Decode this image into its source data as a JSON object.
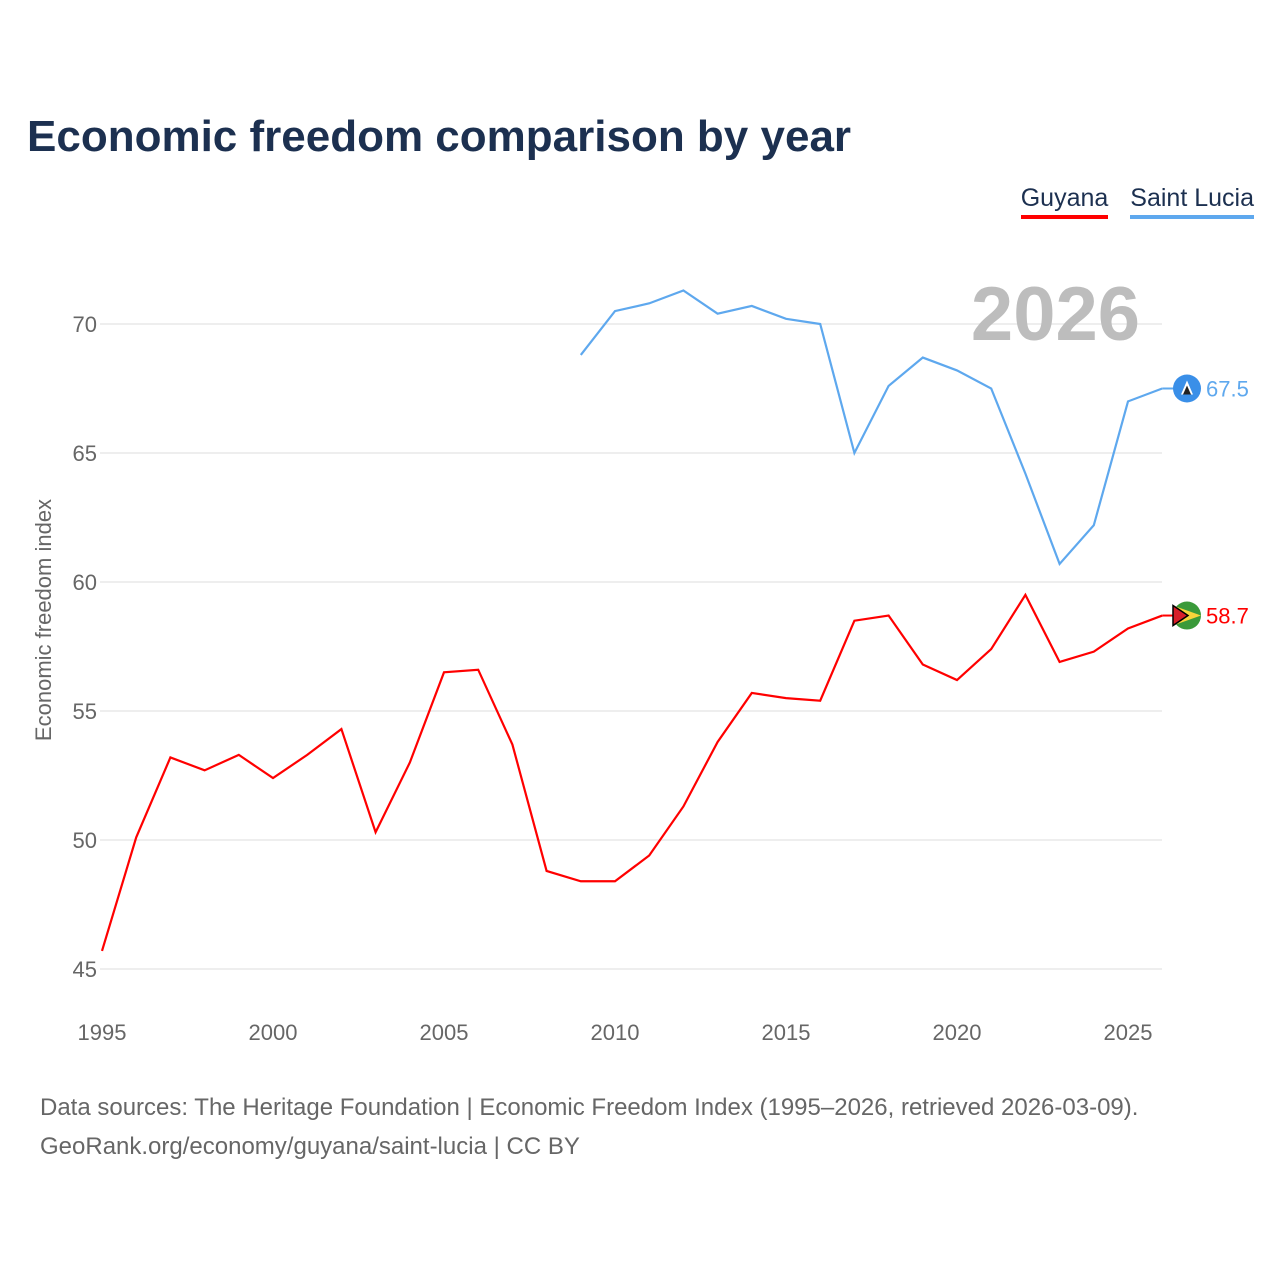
{
  "chart_data": {
    "type": "line",
    "title": "Economic freedom comparison by year",
    "xlabel": "",
    "ylabel": "Economic freedom index",
    "xlim": [
      1995,
      2026
    ],
    "ylim": [
      45,
      72
    ],
    "xticks": [
      1995,
      2000,
      2005,
      2010,
      2015,
      2020,
      2025
    ],
    "yticks": [
      45,
      50,
      55,
      60,
      65,
      70
    ],
    "grid": true,
    "legend_position": "top-right",
    "year_label": "2026",
    "series": [
      {
        "name": "Guyana",
        "color": "#ff0000",
        "end_label": "58.7",
        "x": [
          1995,
          1996,
          1997,
          1998,
          1999,
          2000,
          2001,
          2002,
          2003,
          2004,
          2005,
          2006,
          2007,
          2008,
          2009,
          2010,
          2011,
          2012,
          2013,
          2014,
          2015,
          2016,
          2017,
          2018,
          2019,
          2020,
          2021,
          2022,
          2023,
          2024,
          2025,
          2026
        ],
        "values": [
          45.7,
          50.1,
          53.2,
          52.7,
          53.3,
          52.4,
          53.3,
          54.3,
          50.3,
          53.0,
          56.5,
          56.6,
          53.7,
          48.8,
          48.4,
          48.4,
          49.4,
          51.3,
          53.8,
          55.7,
          55.5,
          55.4,
          58.5,
          58.7,
          56.8,
          56.2,
          57.4,
          59.5,
          56.9,
          57.3,
          58.2,
          58.7
        ]
      },
      {
        "name": "Saint Lucia",
        "color": "#5ea8ee",
        "end_label": "67.5",
        "x": [
          2009,
          2010,
          2011,
          2012,
          2013,
          2014,
          2015,
          2016,
          2017,
          2018,
          2019,
          2020,
          2021,
          2022,
          2023,
          2024,
          2025,
          2026
        ],
        "values": [
          68.8,
          70.5,
          70.8,
          71.3,
          70.4,
          70.7,
          70.2,
          70.0,
          65.0,
          67.6,
          68.7,
          68.2,
          67.5,
          64.2,
          60.7,
          62.2,
          67.0,
          67.5
        ]
      }
    ]
  },
  "footer": {
    "line1": "Data sources: The Heritage Foundation | Economic Freedom Index (1995–2026, retrieved 2026-03-09).",
    "line2": "GeoRank.org/economy/guyana/saint-lucia | CC BY"
  }
}
